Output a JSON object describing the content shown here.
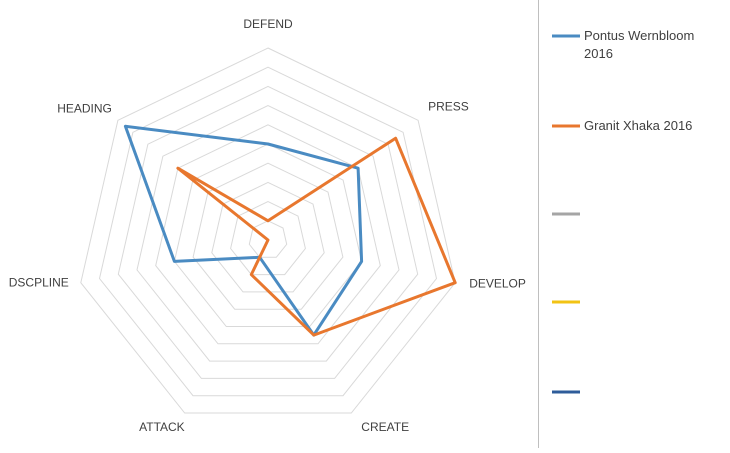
{
  "chart_data": {
    "type": "radar",
    "title": "",
    "axes": [
      "DEFEND",
      "PRESS",
      "DEVELOP",
      "CREATE",
      "ATTACK",
      "DSCPLINE",
      "HEADING"
    ],
    "rlim": [
      0,
      10
    ],
    "gridlines": true,
    "grid_levels": 10,
    "legend_position": "right",
    "series": [
      {
        "name": "Pontus Wernbloom 2016",
        "color": "#4a8bc2",
        "values": [
          5.0,
          6.0,
          5.0,
          5.5,
          1.0,
          5.0,
          9.5
        ]
      },
      {
        "name": "Granit Xhaka 2016",
        "color": "#e8772e",
        "values": [
          1.0,
          8.5,
          10.0,
          5.5,
          2.0,
          0.0,
          6.0
        ]
      },
      {
        "name": "",
        "color": "#a5a5a5",
        "values": []
      },
      {
        "name": "",
        "color": "#f2c314",
        "values": []
      },
      {
        "name": "",
        "color": "#2e5c9a",
        "values": []
      }
    ]
  }
}
